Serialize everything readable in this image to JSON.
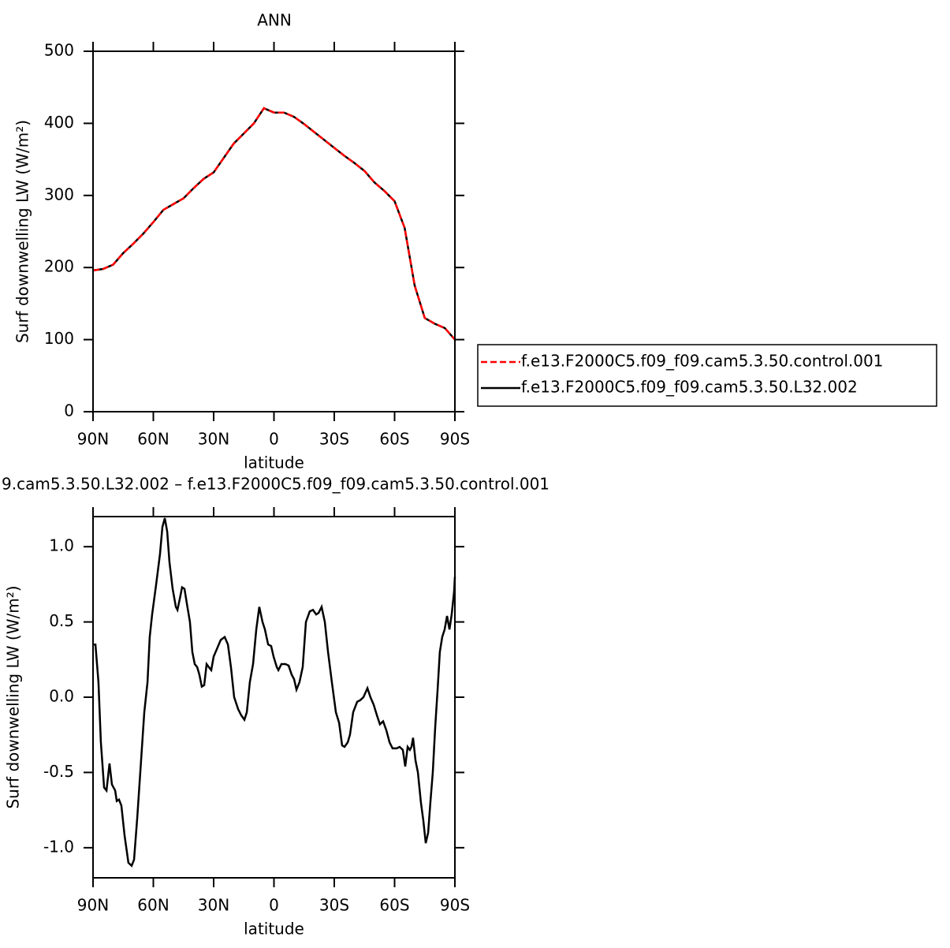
{
  "chart_data": [
    {
      "type": "line",
      "title": "ANN",
      "xlabel": "latitude",
      "ylabel": "Surf downwelling LW (W/m²)",
      "x": [
        90,
        85,
        80,
        75,
        70,
        65,
        60,
        55,
        50,
        45,
        40,
        35,
        30,
        25,
        20,
        15,
        10,
        5,
        0,
        -5,
        -10,
        -15,
        -20,
        -25,
        -30,
        -35,
        -40,
        -45,
        -50,
        -55,
        -60,
        -65,
        -70,
        -75,
        -80,
        -85,
        -90
      ],
      "series": [
        {
          "name": "f.e13.F2000C5.f09_f09.cam5.3.50.control.001",
          "color": "#ff0000",
          "dash": true,
          "values": [
            196,
            198,
            204,
            220,
            233,
            247,
            263,
            280,
            288,
            296,
            310,
            323,
            332,
            352,
            372,
            386,
            400,
            421,
            415,
            415,
            409,
            399,
            388,
            377,
            366,
            355,
            345,
            334,
            318,
            306,
            292,
            255,
            175,
            130,
            122,
            116,
            100
          ]
        },
        {
          "name": "f.e13.F2000C5.f09_f09.cam5.3.50.L32.002",
          "color": "#000000",
          "dash": false,
          "values": [
            196,
            198,
            204,
            220,
            233,
            247,
            263,
            280,
            288,
            296,
            310,
            323,
            332,
            352,
            372,
            386,
            400,
            421,
            415,
            415,
            409,
            399,
            388,
            377,
            366,
            355,
            345,
            334,
            318,
            306,
            292,
            255,
            175,
            130,
            122,
            116,
            100
          ]
        }
      ],
      "xlim": [
        90,
        -90
      ],
      "xticks": [
        {
          "value": 90,
          "label": "90N"
        },
        {
          "value": 60,
          "label": "60N"
        },
        {
          "value": 30,
          "label": "30N"
        },
        0,
        {
          "value": -30,
          "label": "30S"
        },
        {
          "value": -60,
          "label": "60S"
        },
        {
          "value": -90,
          "label": "90S"
        }
      ],
      "ylim": [
        0,
        500
      ],
      "yticks": [
        0,
        100,
        200,
        300,
        400,
        500
      ],
      "legend": "right"
    },
    {
      "type": "line",
      "title": "9.cam5.3.50.L32.002 – f.e13.F2000C5.f09_f09.cam5.3.50.control.001",
      "xlabel": "latitude",
      "ylabel": "Surf downwelling LW (W/m²)",
      "x": [
        90,
        88.8,
        87.3,
        86.1,
        84.5,
        83.3,
        81.8,
        80.6,
        79.0,
        78.2,
        77.1,
        75.9,
        74.3,
        72.4,
        70.8,
        69.6,
        68.0,
        66.5,
        64.5,
        62.9,
        61.8,
        60.6,
        58.6,
        56.7,
        55.5,
        54.3,
        53.1,
        52.0,
        50.4,
        48.8,
        48.0,
        46.9,
        45.7,
        44.5,
        43.3,
        41.8,
        40.6,
        39.4,
        38.2,
        37.1,
        35.9,
        34.7,
        33.5,
        32.4,
        31.2,
        30.0,
        28.4,
        26.5,
        24.5,
        22.9,
        21.4,
        19.8,
        17.8,
        16.3,
        14.7,
        13.5,
        12.0,
        10.4,
        8.8,
        7.3,
        5.7,
        4.5,
        2.9,
        1.4,
        0.2,
        -1.4,
        -2.2,
        -3.7,
        -5.7,
        -7.3,
        -8.8,
        -10.0,
        -11.2,
        -12.7,
        -14.3,
        -15.9,
        -17.8,
        -19.4,
        -21.0,
        -22.2,
        -23.7,
        -25.3,
        -26.9,
        -28.8,
        -30.8,
        -32.4,
        -33.9,
        -35.1,
        -36.7,
        -37.8,
        -39.4,
        -41.4,
        -42.9,
        -44.5,
        -46.5,
        -48.0,
        -49.6,
        -51.2,
        -52.7,
        -54.3,
        -55.9,
        -57.5,
        -59.0,
        -61.0,
        -62.5,
        -64.1,
        -65.3,
        -66.5,
        -67.6,
        -68.4,
        -69.2,
        -70.4,
        -71.6,
        -73.1,
        -74.3,
        -75.5,
        -76.7,
        -77.8,
        -79.0,
        -80.2,
        -81.4,
        -82.5,
        -83.7,
        -84.9,
        -86.1,
        -87.3,
        -88.4,
        -89.6,
        -90
      ],
      "values": [
        0.35,
        0.35,
        0.1,
        -0.3,
        -0.6,
        -0.62,
        -0.44,
        -0.58,
        -0.62,
        -0.69,
        -0.68,
        -0.72,
        -0.92,
        -1.1,
        -1.12,
        -1.08,
        -0.8,
        -0.5,
        -0.1,
        0.1,
        0.4,
        0.55,
        0.75,
        0.95,
        1.13,
        1.19,
        1.1,
        0.9,
        0.72,
        0.6,
        0.58,
        0.65,
        0.73,
        0.72,
        0.62,
        0.5,
        0.3,
        0.22,
        0.2,
        0.15,
        0.07,
        0.08,
        0.22,
        0.2,
        0.18,
        0.27,
        0.32,
        0.38,
        0.4,
        0.35,
        0.2,
        0,
        -0.08,
        -0.12,
        -0.15,
        -0.1,
        0.1,
        0.22,
        0.45,
        0.6,
        0.5,
        0.45,
        0.35,
        0.34,
        0.27,
        0.2,
        0.18,
        0.22,
        0.22,
        0.21,
        0.15,
        0.12,
        0.05,
        0.1,
        0.2,
        0.5,
        0.57,
        0.58,
        0.55,
        0.56,
        0.6,
        0.5,
        0.3,
        0.1,
        -0.1,
        -0.17,
        -0.32,
        -0.33,
        -0.3,
        -0.25,
        -0.1,
        -0.03,
        -0.02,
        0,
        0.06,
        0,
        -0.05,
        -0.12,
        -0.18,
        -0.16,
        -0.22,
        -0.3,
        -0.34,
        -0.34,
        -0.33,
        -0.35,
        -0.46,
        -0.33,
        -0.35,
        -0.33,
        -0.27,
        -0.42,
        -0.5,
        -0.7,
        -0.82,
        -0.97,
        -0.9,
        -0.7,
        -0.5,
        -0.2,
        0.05,
        0.3,
        0.4,
        0.45,
        0.54,
        0.45,
        0.55,
        0.7,
        0.8
      ],
      "color": "#000000",
      "xlim": [
        90,
        -90
      ],
      "xticks": [
        {
          "value": 90,
          "label": "90N"
        },
        {
          "value": 60,
          "label": "60N"
        },
        {
          "value": 30,
          "label": "30N"
        },
        0,
        {
          "value": -30,
          "label": "30S"
        },
        {
          "value": -60,
          "label": "60S"
        },
        {
          "value": -90,
          "label": "90S"
        }
      ],
      "ylim": [
        -1.2,
        1.2
      ],
      "yticks": [
        {
          "value": -1,
          "label": "-1.0"
        },
        -0.5,
        {
          "value": 0,
          "label": "0.0"
        },
        0.5,
        {
          "value": 1,
          "label": "1.0"
        }
      ]
    }
  ]
}
